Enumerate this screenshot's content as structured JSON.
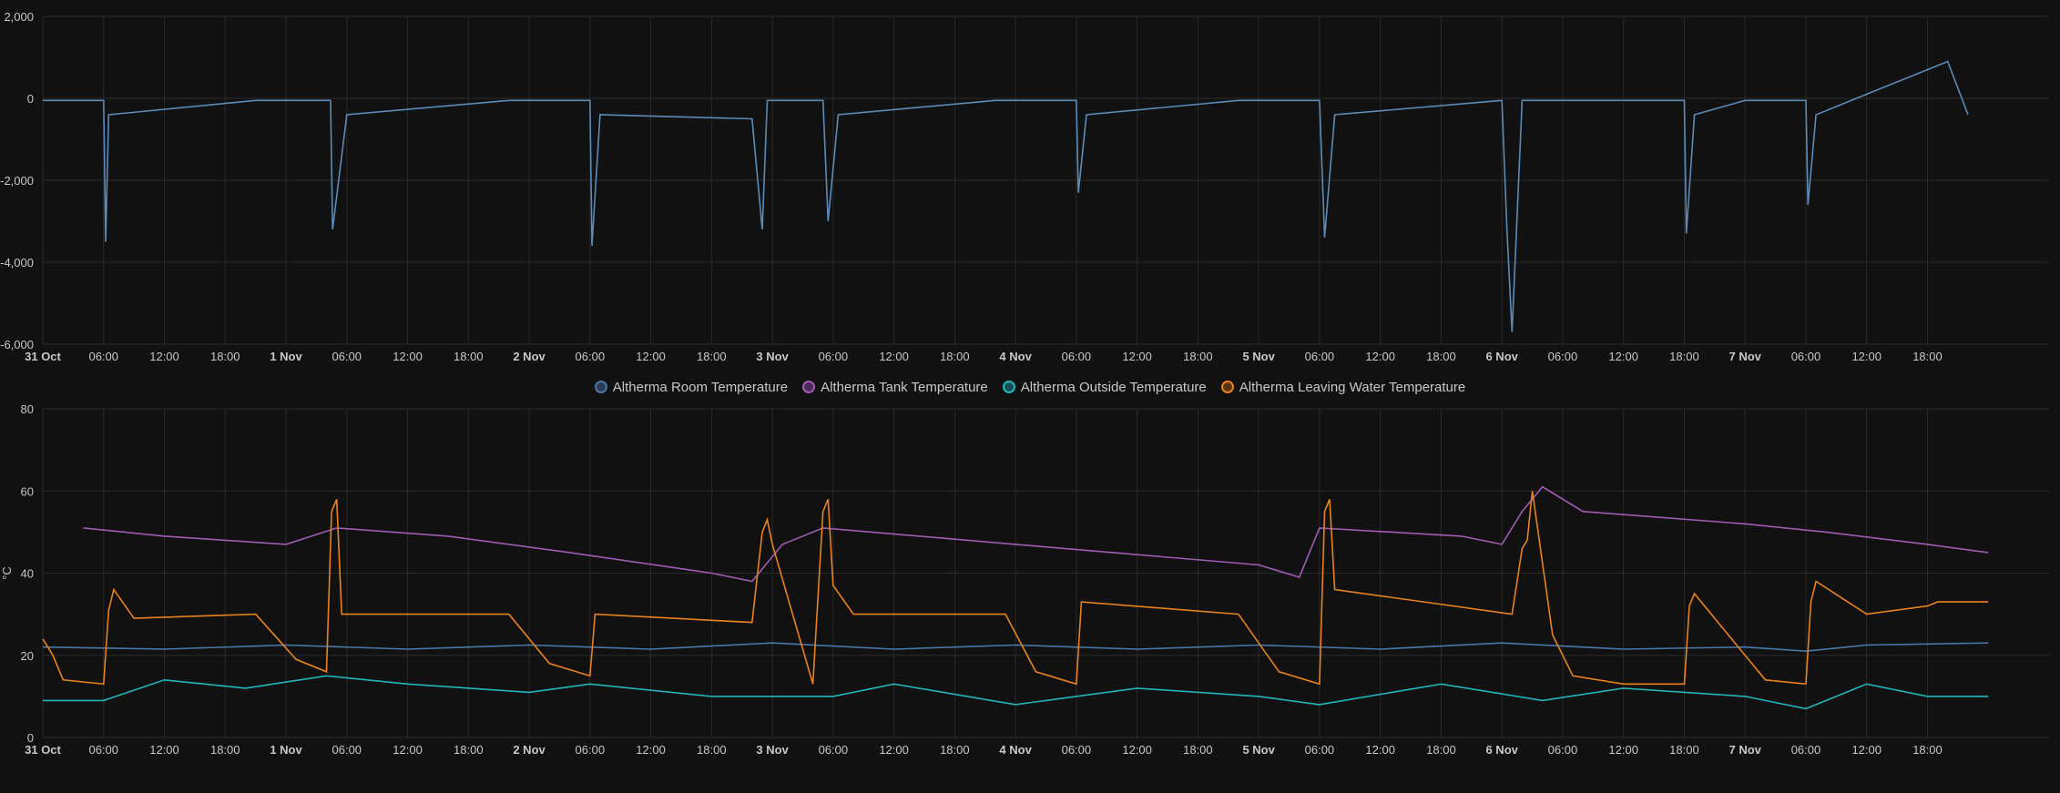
{
  "colors": {
    "background": "#111111",
    "grid": "#2a2a2a",
    "axis_text": "#c8c8c8",
    "power": "#5b8bb8",
    "room": "#4a78a8",
    "tank": "#a05cb5",
    "outside": "#22b5b8",
    "leaving": "#e8821e"
  },
  "chart_data": [
    {
      "type": "line",
      "title": "",
      "xlabel": "",
      "ylabel": "",
      "ylim": [
        -6000,
        2000
      ],
      "yticks": [
        "2,000",
        "0",
        "-2,000",
        "-4,000",
        "-6,000"
      ],
      "xticks": [
        "31 Oct",
        "06:00",
        "12:00",
        "18:00",
        "1 Nov",
        "06:00",
        "12:00",
        "18:00",
        "2 Nov",
        "06:00",
        "12:00",
        "18:00",
        "3 Nov",
        "06:00",
        "12:00",
        "18:00",
        "4 Nov",
        "06:00",
        "12:00",
        "18:00",
        "5 Nov",
        "06:00",
        "12:00",
        "18:00",
        "6 Nov",
        "06:00",
        "12:00",
        "18:00",
        "7 Nov",
        "06:00",
        "12:00",
        "18:00"
      ],
      "grid": true,
      "series": [
        {
          "color": "#5b8bb8",
          "description_points": [
            [
              0,
              -50
            ],
            [
              6,
              -50
            ],
            [
              6.2,
              -3500
            ],
            [
              6.5,
              -400
            ],
            [
              21,
              -50
            ],
            [
              28.4,
              -50
            ],
            [
              28.6,
              -3200
            ],
            [
              30,
              -400
            ],
            [
              46,
              -50
            ],
            [
              54,
              -50
            ],
            [
              54.2,
              -3600
            ],
            [
              55,
              -400
            ],
            [
              70,
              -500
            ],
            [
              71,
              -3200
            ],
            [
              71.5,
              -50
            ],
            [
              77,
              -50
            ],
            [
              77.5,
              -3000
            ],
            [
              78.5,
              -400
            ],
            [
              94,
              -50
            ],
            [
              102,
              -50
            ],
            [
              102.2,
              -2300
            ],
            [
              103,
              -400
            ],
            [
              118,
              -50
            ],
            [
              126,
              -50
            ],
            [
              126.5,
              -3400
            ],
            [
              127.5,
              -400
            ],
            [
              144,
              -50
            ],
            [
              144.5,
              -3200
            ],
            [
              145,
              -5700
            ],
            [
              146,
              -50
            ],
            [
              162,
              -50
            ],
            [
              162.2,
              -3300
            ],
            [
              163,
              -400
            ],
            [
              168,
              -50
            ],
            [
              174,
              -50
            ],
            [
              174.2,
              -2600
            ],
            [
              175,
              -400
            ],
            [
              188,
              900
            ],
            [
              190,
              -400
            ]
          ]
        }
      ]
    },
    {
      "type": "line",
      "title": "",
      "xlabel": "",
      "ylabel": "°C",
      "ylim": [
        0,
        80
      ],
      "yticks": [
        "80",
        "60",
        "40",
        "20",
        "0"
      ],
      "xticks": [
        "31 Oct",
        "06:00",
        "12:00",
        "18:00",
        "1 Nov",
        "06:00",
        "12:00",
        "18:00",
        "2 Nov",
        "06:00",
        "12:00",
        "18:00",
        "3 Nov",
        "06:00",
        "12:00",
        "18:00",
        "4 Nov",
        "06:00",
        "12:00",
        "18:00",
        "5 Nov",
        "06:00",
        "12:00",
        "18:00",
        "6 Nov",
        "06:00",
        "12:00",
        "18:00",
        "7 Nov",
        "06:00",
        "12:00",
        "18:00"
      ],
      "grid": true,
      "legend_position": "top-center",
      "series": [
        {
          "name": "Altherma Room Temperature",
          "color": "#4a78a8",
          "points": [
            [
              0,
              22
            ],
            [
              12,
              21.5
            ],
            [
              24,
              22.5
            ],
            [
              36,
              21.5
            ],
            [
              48,
              22.5
            ],
            [
              60,
              21.5
            ],
            [
              72,
              23
            ],
            [
              84,
              21.5
            ],
            [
              96,
              22.5
            ],
            [
              108,
              21.5
            ],
            [
              120,
              22.5
            ],
            [
              132,
              21.5
            ],
            [
              144,
              23
            ],
            [
              156,
              21.5
            ],
            [
              168,
              22
            ],
            [
              174,
              21
            ],
            [
              180,
              22.5
            ],
            [
              192,
              23
            ]
          ]
        },
        {
          "name": "Altherma Tank Temperature",
          "color": "#a05cb5",
          "points": [
            [
              4,
              51
            ],
            [
              12,
              49
            ],
            [
              24,
              47
            ],
            [
              29,
              51
            ],
            [
              40,
              49
            ],
            [
              52,
              45
            ],
            [
              66,
              40
            ],
            [
              70,
              38
            ],
            [
              73,
              47
            ],
            [
              77,
              51
            ],
            [
              96,
              47
            ],
            [
              120,
              42
            ],
            [
              124,
              39
            ],
            [
              126,
              51
            ],
            [
              140,
              49
            ],
            [
              144,
              47
            ],
            [
              146,
              55
            ],
            [
              148,
              61
            ],
            [
              152,
              55
            ],
            [
              168,
              52
            ],
            [
              176,
              50
            ],
            [
              186,
              47
            ],
            [
              192,
              45
            ]
          ]
        },
        {
          "name": "Altherma Outside Temperature",
          "color": "#22b5b8",
          "points": [
            [
              0,
              9
            ],
            [
              6,
              9
            ],
            [
              12,
              14
            ],
            [
              20,
              12
            ],
            [
              28,
              15
            ],
            [
              36,
              13
            ],
            [
              48,
              11
            ],
            [
              54,
              13
            ],
            [
              66,
              10
            ],
            [
              78,
              10
            ],
            [
              84,
              13
            ],
            [
              96,
              8
            ],
            [
              108,
              12
            ],
            [
              120,
              10
            ],
            [
              126,
              8
            ],
            [
              138,
              13
            ],
            [
              148,
              9
            ],
            [
              156,
              12
            ],
            [
              168,
              10
            ],
            [
              174,
              7
            ],
            [
              180,
              13
            ],
            [
              186,
              10
            ],
            [
              192,
              10
            ]
          ]
        },
        {
          "name": "Altherma Leaving Water Temperature",
          "color": "#e8821e",
          "points": [
            [
              0,
              24
            ],
            [
              1,
              20
            ],
            [
              2,
              14
            ],
            [
              6,
              13
            ],
            [
              6.5,
              31
            ],
            [
              7,
              36
            ],
            [
              9,
              29
            ],
            [
              21,
              30
            ],
            [
              25,
              19
            ],
            [
              28,
              16
            ],
            [
              28.5,
              55
            ],
            [
              29,
              58
            ],
            [
              29.5,
              30
            ],
            [
              46,
              30
            ],
            [
              50,
              18
            ],
            [
              54,
              15
            ],
            [
              54.5,
              30
            ],
            [
              70,
              28
            ],
            [
              71,
              50
            ],
            [
              71.5,
              53
            ],
            [
              72,
              47
            ],
            [
              76,
              13
            ],
            [
              77,
              55
            ],
            [
              77.5,
              58
            ],
            [
              78,
              37
            ],
            [
              80,
              30
            ],
            [
              95,
              30
            ],
            [
              98,
              16
            ],
            [
              102,
              13
            ],
            [
              102.5,
              33
            ],
            [
              118,
              30
            ],
            [
              122,
              16
            ],
            [
              126,
              13
            ],
            [
              126.5,
              55
            ],
            [
              127,
              58
            ],
            [
              127.5,
              36
            ],
            [
              145,
              30
            ],
            [
              146,
              46
            ],
            [
              146.5,
              48
            ],
            [
              147,
              60
            ],
            [
              149,
              25
            ],
            [
              151,
              15
            ],
            [
              156,
              13
            ],
            [
              160,
              13
            ],
            [
              162,
              13
            ],
            [
              162.5,
              32
            ],
            [
              163,
              35
            ],
            [
              168,
              20
            ],
            [
              170,
              14
            ],
            [
              174,
              13
            ],
            [
              174.5,
              33
            ],
            [
              175,
              38
            ],
            [
              180,
              30
            ],
            [
              186,
              32
            ],
            [
              187,
              33
            ],
            [
              192,
              33
            ]
          ]
        }
      ]
    }
  ],
  "legend": [
    {
      "label": "Altherma Room Temperature",
      "color": "#4a78a8"
    },
    {
      "label": "Altherma Tank Temperature",
      "color": "#a05cb5"
    },
    {
      "label": "Altherma Outside Temperature",
      "color": "#22b5b8"
    },
    {
      "label": "Altherma Leaving Water Temperature",
      "color": "#e8821e"
    }
  ]
}
